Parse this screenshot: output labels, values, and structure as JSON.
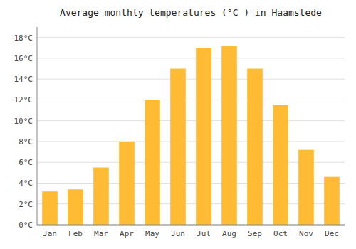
{
  "chart_data": {
    "type": "bar",
    "title": "Average monthly temperatures (°C ) in Haamstede",
    "categories": [
      "Jan",
      "Feb",
      "Mar",
      "Apr",
      "May",
      "Jun",
      "Jul",
      "Aug",
      "Sep",
      "Oct",
      "Nov",
      "Dec"
    ],
    "values": [
      3.2,
      3.4,
      5.5,
      8.0,
      12.0,
      15.0,
      17.0,
      17.2,
      15.0,
      11.5,
      7.2,
      4.6
    ],
    "color": "#FFBB33",
    "ylim": [
      0,
      19
    ],
    "yticks": [
      {
        "value": 0,
        "label": "0°C"
      },
      {
        "value": 2,
        "label": "2°C"
      },
      {
        "value": 4,
        "label": "4°C"
      },
      {
        "value": 6,
        "label": "6°C"
      },
      {
        "value": 8,
        "label": "8°C"
      },
      {
        "value": 10,
        "label": "10°C"
      },
      {
        "value": 12,
        "label": "12°C"
      },
      {
        "value": 14,
        "label": "14°C"
      },
      {
        "value": 16,
        "label": "16°C"
      },
      {
        "value": 18,
        "label": "18°C"
      }
    ],
    "grid": true
  }
}
